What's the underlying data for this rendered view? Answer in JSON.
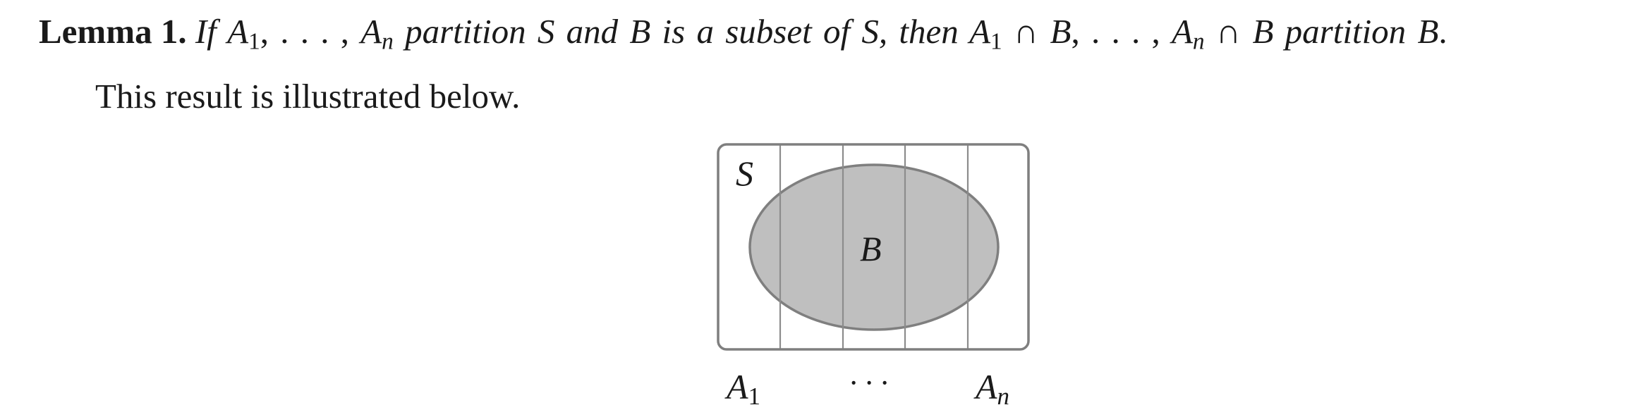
{
  "lemma": {
    "label": "Lemma 1.",
    "statement_parts": {
      "p1": "If ",
      "a": "A",
      "sub1": "1",
      "p2": ", . . . , ",
      "a2": "A",
      "subn": "n",
      "p3": " partition ",
      "s": "S",
      "p4": " and ",
      "b": "B",
      "p5": " is a subset of ",
      "s2": "S",
      "p6": ", then ",
      "a3": "A",
      "sub1b": "1",
      "p7": " ∩ ",
      "b2": "B",
      "p8": ", . . . , ",
      "a4": "A",
      "subn2": "n",
      "p9": " ∩ ",
      "b3": "B",
      "p10": " partition ",
      "b4": "B",
      "p11": "."
    }
  },
  "paragraph": "This result is illustrated below.",
  "figure": {
    "set_label": "S",
    "subset_label": "B",
    "bottom_labels": {
      "first_main": "A",
      "first_sub": "1",
      "middle": "· · ·",
      "last_main": "A",
      "last_sub": "n"
    },
    "colors": {
      "outline": "#7f7f7f",
      "ellipse_fill": "#bfbfbf",
      "divider": "#8c8c8c"
    }
  }
}
